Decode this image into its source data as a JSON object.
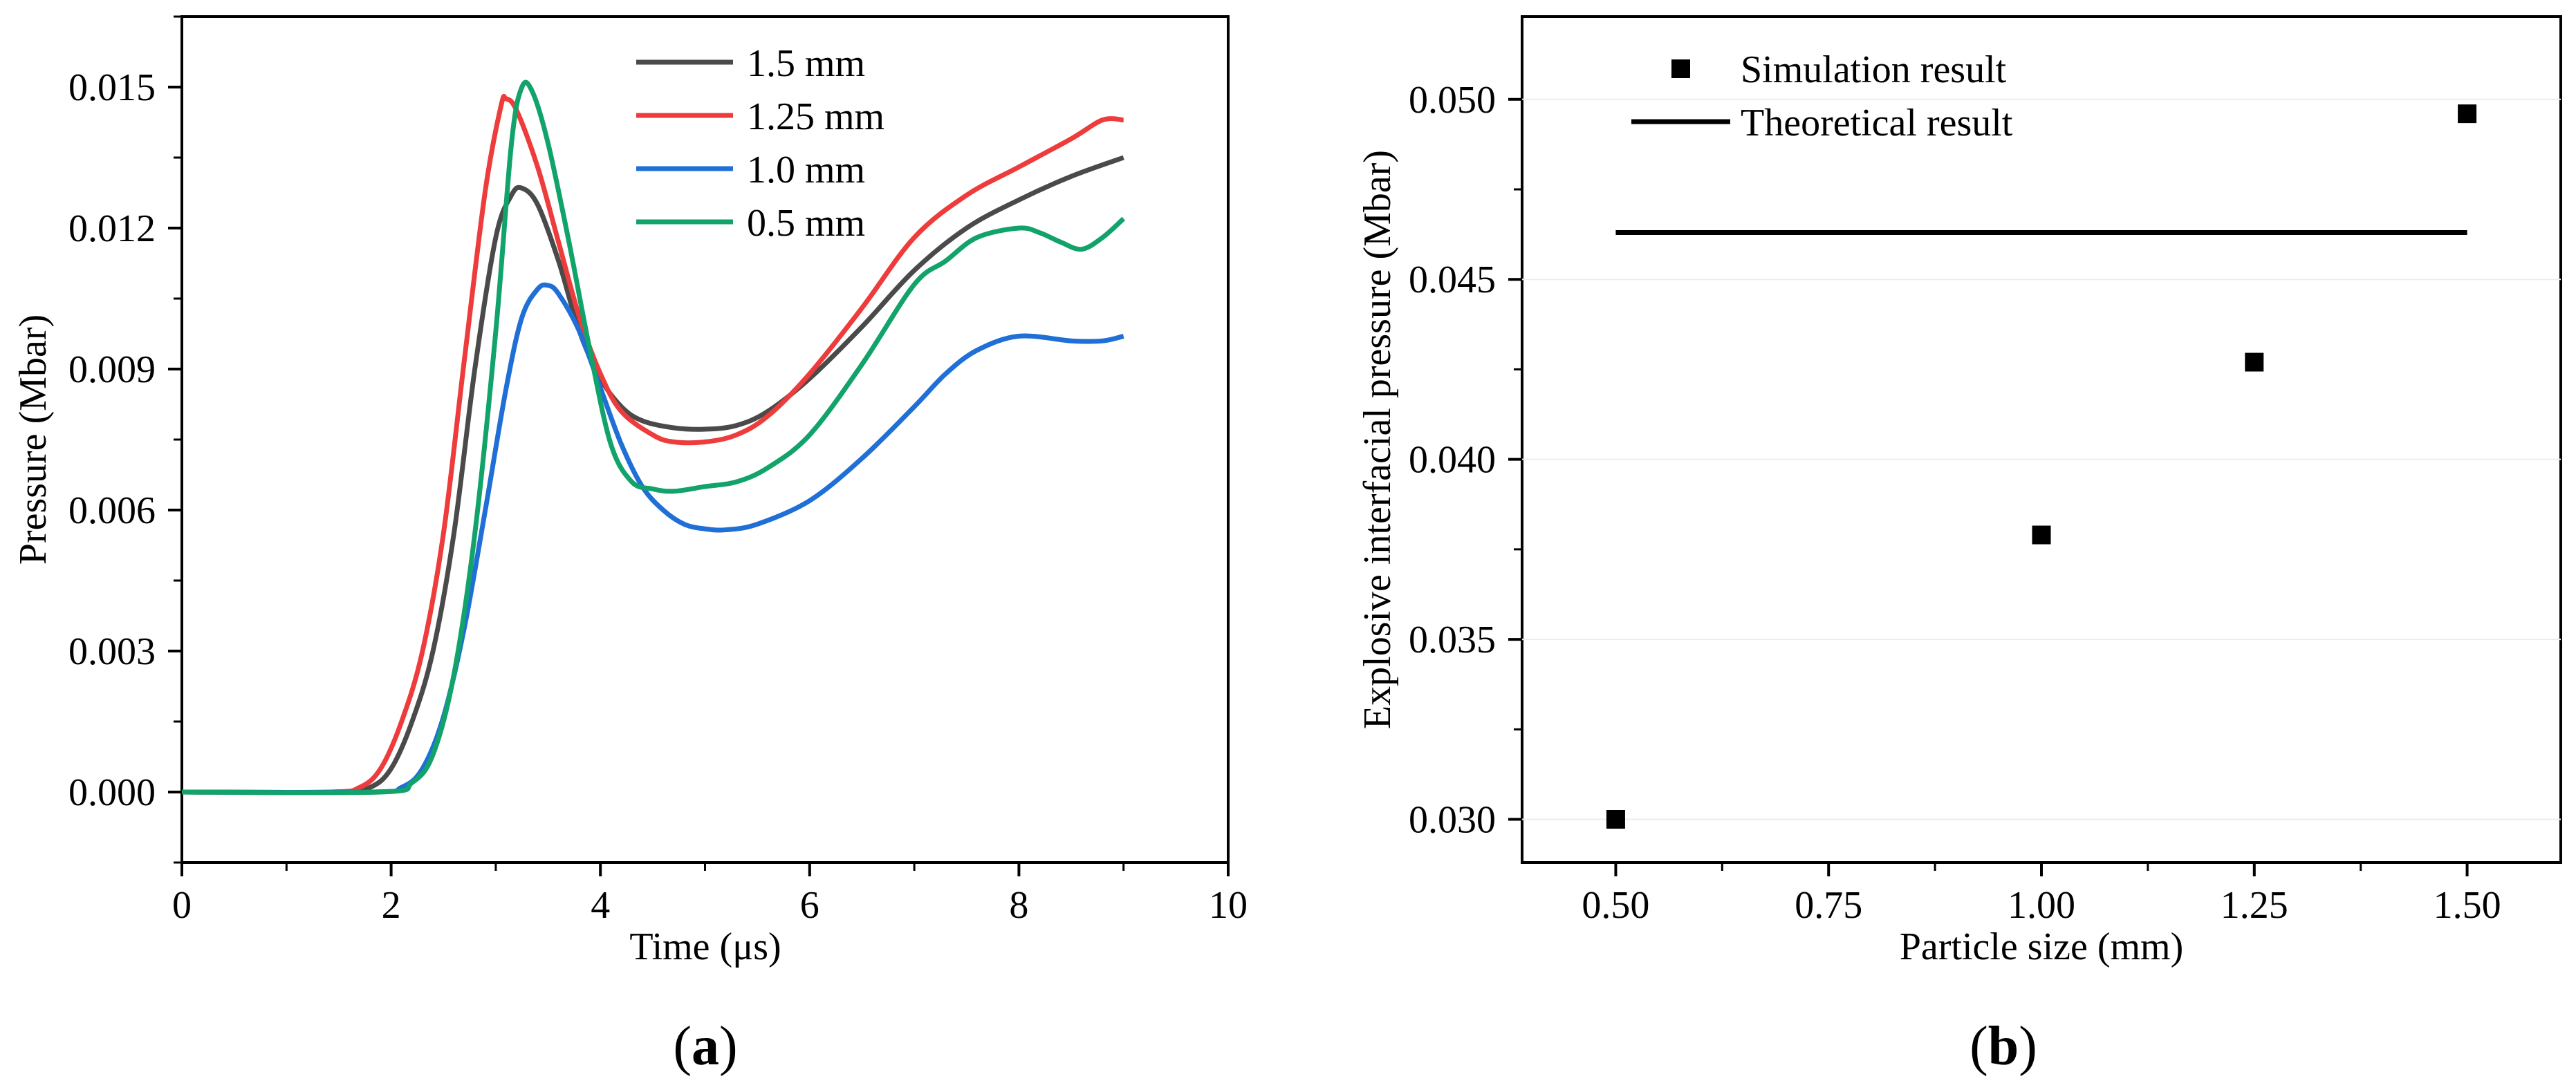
{
  "chart_data": [
    {
      "type": "line",
      "panel_label": "(a)",
      "panel_letter": "a",
      "xlabel": "Time (μs)",
      "ylabel": "Pressure (Mbar)",
      "xlim": [
        0,
        10
      ],
      "ylim": [
        -0.0015,
        0.0165
      ],
      "xticks": [
        0,
        2,
        4,
        6,
        8,
        10
      ],
      "yticks": [
        0.0,
        0.003,
        0.006,
        0.009,
        0.012,
        0.015
      ],
      "ytick_labels": [
        "0.000",
        "0.003",
        "0.006",
        "0.009",
        "0.012",
        "0.015"
      ],
      "legend_position": "top-center",
      "series": [
        {
          "name": "1.5 mm",
          "color": "#4a4a4a",
          "points": [
            [
              0,
              0
            ],
            [
              1.5,
              0
            ],
            [
              1.8,
              0.0001
            ],
            [
              2.0,
              0.0005
            ],
            [
              2.2,
              0.0015
            ],
            [
              2.4,
              0.003
            ],
            [
              2.6,
              0.0055
            ],
            [
              2.8,
              0.009
            ],
            [
              3.0,
              0.0118
            ],
            [
              3.15,
              0.0127
            ],
            [
              3.25,
              0.01285
            ],
            [
              3.4,
              0.0125
            ],
            [
              3.6,
              0.0113
            ],
            [
              3.8,
              0.0098
            ],
            [
              4.0,
              0.0088
            ],
            [
              4.2,
              0.0082
            ],
            [
              4.4,
              0.0079
            ],
            [
              4.7,
              0.00775
            ],
            [
              5.0,
              0.00772
            ],
            [
              5.3,
              0.0078
            ],
            [
              5.6,
              0.0081
            ],
            [
              6.0,
              0.0088
            ],
            [
              6.5,
              0.0099
            ],
            [
              7.0,
              0.0111
            ],
            [
              7.5,
              0.012
            ],
            [
              8.0,
              0.0126
            ],
            [
              8.5,
              0.0131
            ],
            [
              9.0,
              0.0135
            ]
          ]
        },
        {
          "name": "1.25 mm",
          "color": "#ee3b3b",
          "points": [
            [
              0,
              0
            ],
            [
              1.4,
              0
            ],
            [
              1.7,
              0.0001
            ],
            [
              1.9,
              0.0005
            ],
            [
              2.1,
              0.0015
            ],
            [
              2.3,
              0.003
            ],
            [
              2.5,
              0.0055
            ],
            [
              2.7,
              0.0092
            ],
            [
              2.9,
              0.0128
            ],
            [
              3.05,
              0.0146
            ],
            [
              3.1,
              0.01475
            ],
            [
              3.2,
              0.0145
            ],
            [
              3.4,
              0.0133
            ],
            [
              3.6,
              0.0117
            ],
            [
              3.8,
              0.0101
            ],
            [
              4.0,
              0.0089
            ],
            [
              4.2,
              0.0081
            ],
            [
              4.5,
              0.0076
            ],
            [
              4.7,
              0.00745
            ],
            [
              5.0,
              0.00745
            ],
            [
              5.3,
              0.0076
            ],
            [
              5.6,
              0.008
            ],
            [
              6.0,
              0.0089
            ],
            [
              6.5,
              0.0103
            ],
            [
              7.0,
              0.0118
            ],
            [
              7.5,
              0.0127
            ],
            [
              8.0,
              0.0133
            ],
            [
              8.5,
              0.0139
            ],
            [
              8.8,
              0.0143
            ],
            [
              9.0,
              0.0143
            ]
          ]
        },
        {
          "name": "1.0 mm",
          "color": "#1f6fd6",
          "points": [
            [
              0,
              0
            ],
            [
              1.8,
              0
            ],
            [
              2.1,
              0.0001
            ],
            [
              2.3,
              0.0005
            ],
            [
              2.5,
              0.0016
            ],
            [
              2.7,
              0.0035
            ],
            [
              2.9,
              0.006
            ],
            [
              3.1,
              0.0086
            ],
            [
              3.25,
              0.0101
            ],
            [
              3.4,
              0.0107
            ],
            [
              3.5,
              0.01078
            ],
            [
              3.6,
              0.0106
            ],
            [
              3.8,
              0.0098
            ],
            [
              4.0,
              0.0086
            ],
            [
              4.2,
              0.0074
            ],
            [
              4.4,
              0.0065
            ],
            [
              4.6,
              0.006
            ],
            [
              4.8,
              0.0057
            ],
            [
              5.0,
              0.0056
            ],
            [
              5.2,
              0.00558
            ],
            [
              5.5,
              0.0057
            ],
            [
              6.0,
              0.0062
            ],
            [
              6.5,
              0.0071
            ],
            [
              7.0,
              0.0082
            ],
            [
              7.3,
              0.0089
            ],
            [
              7.6,
              0.0094
            ],
            [
              8.0,
              0.0097
            ],
            [
              8.5,
              0.0096
            ],
            [
              8.8,
              0.0096
            ],
            [
              9.0,
              0.0097
            ]
          ]
        },
        {
          "name": "0.5 mm",
          "color": "#12a36a",
          "points": [
            [
              0,
              0
            ],
            [
              1.9,
              0
            ],
            [
              2.2,
              0.0002
            ],
            [
              2.4,
              0.0008
            ],
            [
              2.6,
              0.0025
            ],
            [
              2.8,
              0.0055
            ],
            [
              3.0,
              0.0098
            ],
            [
              3.15,
              0.0138
            ],
            [
              3.25,
              0.015
            ],
            [
              3.35,
              0.0149
            ],
            [
              3.5,
              0.0138
            ],
            [
              3.7,
              0.0117
            ],
            [
              3.9,
              0.0094
            ],
            [
              4.1,
              0.0074
            ],
            [
              4.3,
              0.0066
            ],
            [
              4.5,
              0.00645
            ],
            [
              4.7,
              0.0064
            ],
            [
              5.0,
              0.0065
            ],
            [
              5.3,
              0.0066
            ],
            [
              5.6,
              0.0069
            ],
            [
              6.0,
              0.0076
            ],
            [
              6.5,
              0.0091
            ],
            [
              7.0,
              0.0108
            ],
            [
              7.3,
              0.0113
            ],
            [
              7.6,
              0.0118
            ],
            [
              8.0,
              0.012
            ],
            [
              8.2,
              0.0119
            ],
            [
              8.4,
              0.0117
            ],
            [
              8.6,
              0.01155
            ],
            [
              8.8,
              0.0118
            ],
            [
              9.0,
              0.0122
            ]
          ]
        }
      ]
    },
    {
      "type": "scatter",
      "panel_label": "(b)",
      "panel_letter": "b",
      "xlabel": "Particle size (mm)",
      "ylabel": "Explosive interfacial pressure (Mbar)",
      "xlim": [
        0.39,
        1.61
      ],
      "ylim": [
        0.0288,
        0.0523
      ],
      "xticks": [
        0.5,
        0.75,
        1.0,
        1.25,
        1.5
      ],
      "xtick_labels": [
        "0.50",
        "0.75",
        "1.00",
        "1.25",
        "1.50"
      ],
      "yticks": [
        0.03,
        0.035,
        0.04,
        0.045,
        0.05
      ],
      "ytick_labels": [
        "0.030",
        "0.035",
        "0.040",
        "0.045",
        "0.050"
      ],
      "legend_position": "top-left",
      "simulation": {
        "name": "Simulation result",
        "x": [
          0.5,
          1.0,
          1.25,
          1.5
        ],
        "y": [
          0.03,
          0.0379,
          0.0427,
          0.0496
        ]
      },
      "theoretical": {
        "name": "Theoretical result",
        "value": 0.0463,
        "x_range": [
          0.5,
          1.5
        ]
      }
    }
  ]
}
